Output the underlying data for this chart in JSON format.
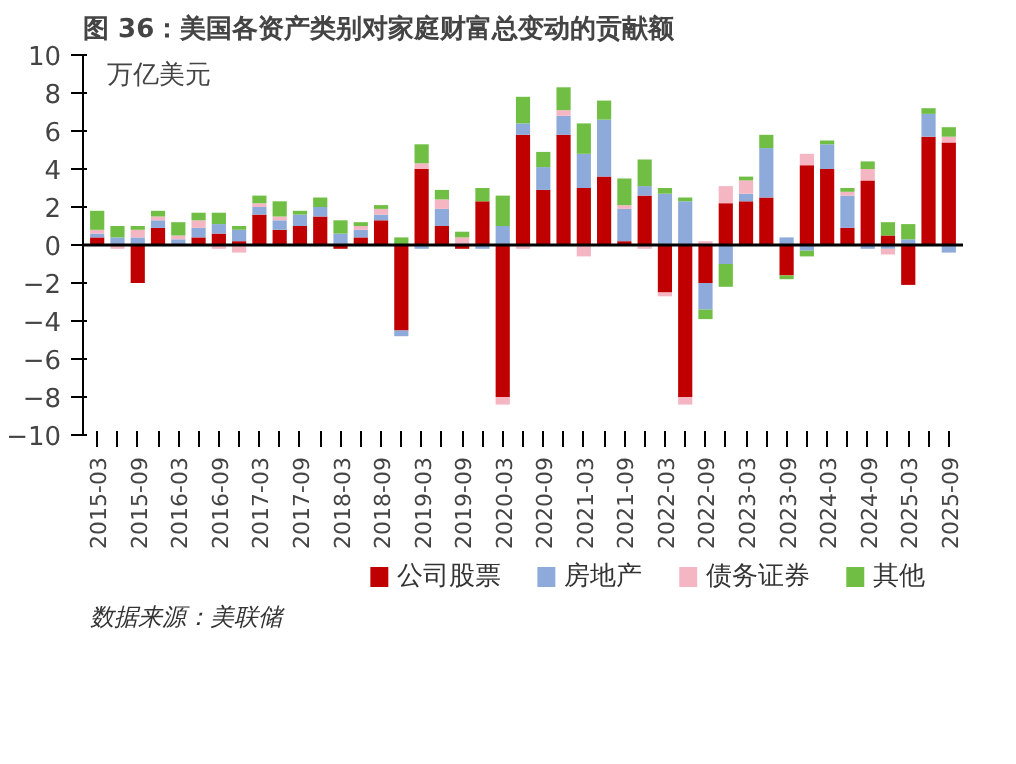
{
  "chart_data": {
    "type": "bar",
    "stacked": true,
    "title": "图 36：美国各资产类别对家庭财富总变动的贡献额",
    "ylabel": "万亿美元",
    "annotations": [
      "数据来源：美联储"
    ],
    "categories": [
      "2015-03",
      null,
      "2015-09",
      null,
      "2016-03",
      null,
      "2016-09",
      null,
      "2017-03",
      null,
      "2017-09",
      null,
      "2018-03",
      null,
      "2018-09",
      null,
      "2019-03",
      null,
      "2019-09",
      null,
      "2020-03",
      null,
      "2020-09",
      null,
      "2021-03",
      null,
      "2021-09",
      null,
      "2022-03",
      null,
      "2022-09",
      null,
      "2023-03",
      null,
      "2023-09",
      null,
      "2024-03",
      null,
      "2024-09",
      null,
      "2025-03",
      null,
      "2025-09"
    ],
    "series": [
      {
        "name": "公司股票",
        "color": "#c00000",
        "values": [
          0.4,
          0,
          -2.0,
          0.9,
          0,
          0.4,
          0.6,
          0.2,
          1.6,
          0.8,
          1.0,
          1.5,
          -0.2,
          0.4,
          1.3,
          -4.5,
          4.0,
          1.0,
          -0.2,
          2.3,
          -8.0,
          5.8,
          2.9,
          5.8,
          3.0,
          3.6,
          0.2,
          2.6,
          -2.5,
          -8.0,
          -2.0,
          2.2,
          2.3,
          2.5,
          -1.6,
          4.2,
          4.0,
          0.9,
          3.4,
          0.5,
          -2.1,
          5.7,
          5.4
        ]
      },
      {
        "name": "房地产",
        "color": "#8eaadb",
        "values": [
          0.2,
          0.4,
          0.4,
          0.4,
          0.3,
          0.5,
          0.5,
          0.6,
          0.4,
          0.5,
          0.6,
          0.5,
          0.6,
          0.4,
          0.3,
          -0.3,
          -0.2,
          0.9,
          0,
          -0.2,
          1.0,
          0.6,
          1.2,
          1.0,
          1.8,
          3.0,
          1.7,
          0.5,
          2.7,
          2.3,
          -1.4,
          -1.0,
          0.4,
          2.6,
          0.4,
          -0.3,
          1.3,
          1.7,
          -0.2,
          -0.2,
          0.3,
          1.2,
          -0.4
        ]
      },
      {
        "name": "债务证券",
        "color": "#f4b6c2",
        "values": [
          0.2,
          -0.2,
          0.4,
          0.2,
          0.2,
          0.4,
          -0.2,
          -0.4,
          0.2,
          0.2,
          0,
          0,
          null,
          0.2,
          0.3,
          0,
          0.3,
          0.5,
          0.4,
          0,
          -0.4,
          -0.2,
          0,
          0.3,
          -0.6,
          0,
          0.2,
          -0.2,
          -0.2,
          -0.4,
          0.2,
          0.9,
          0.7,
          0,
          0,
          0.6,
          0,
          0.2,
          0.6,
          -0.3,
          0,
          null,
          0.3
        ]
      },
      {
        "name": "其他",
        "color": "#70bf44",
        "values": [
          1.0,
          0.6,
          0.2,
          0.3,
          0.7,
          0.4,
          0.6,
          0.2,
          0.4,
          0.8,
          0.2,
          0.5,
          0.7,
          0.2,
          0.2,
          0.4,
          1.0,
          0.5,
          0.3,
          0.7,
          1.6,
          1.4,
          0.8,
          1.2,
          1.6,
          1.0,
          1.4,
          1.4,
          0.3,
          0.2,
          -0.5,
          -1.2,
          0.2,
          0.7,
          -0.2,
          -0.3,
          0.2,
          0.2,
          0.4,
          0.7,
          0.8,
          0.3,
          0.5
        ]
      }
    ],
    "ylim": [
      -10,
      10
    ],
    "yticks": [
      -10,
      -8,
      -6,
      -4,
      -2,
      0,
      2,
      4,
      6,
      8,
      10
    ],
    "ref_lines": [
      {
        "axis": "y",
        "value": 0,
        "color": "#000000"
      }
    ],
    "grid": false,
    "legend": "bottom"
  }
}
